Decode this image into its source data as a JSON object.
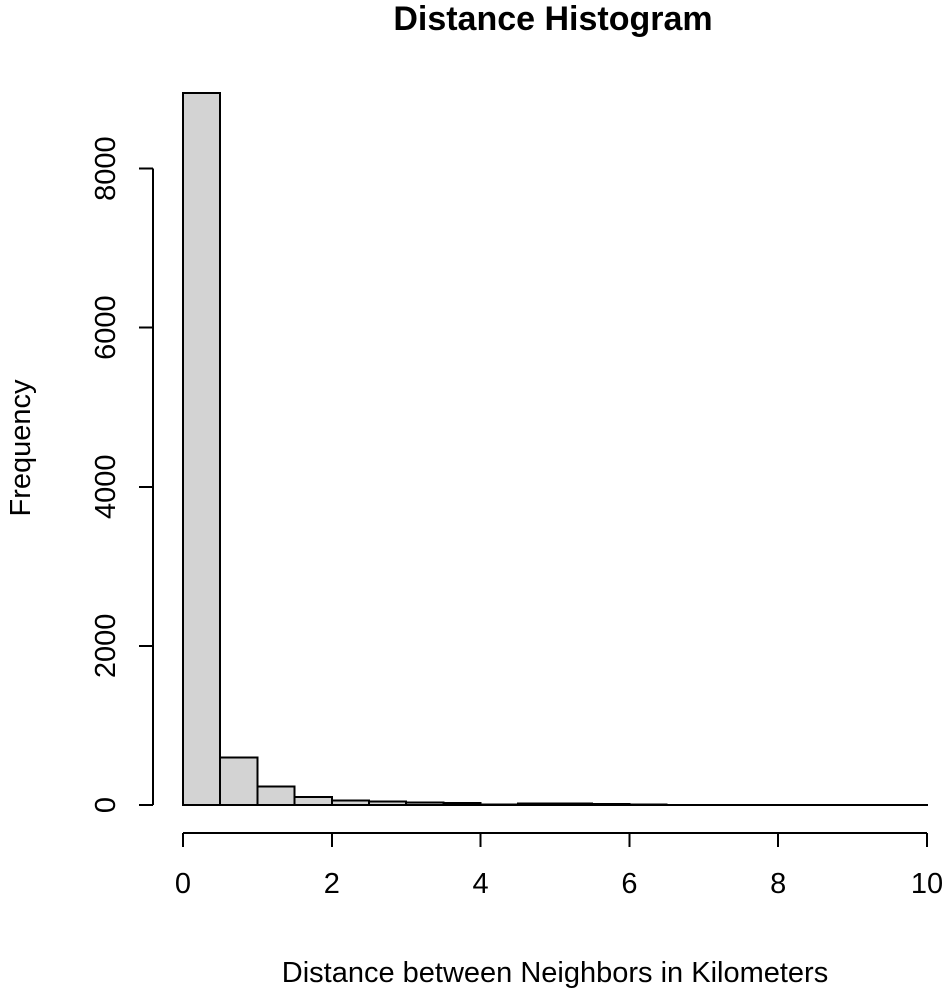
{
  "chart_data": {
    "type": "bar",
    "title": "Distance Histogram",
    "xlabel": "Distance between Neighbors in Kilometers",
    "ylabel": "Frequency",
    "bin_edges": [
      0,
      0.5,
      1,
      1.5,
      2,
      2.5,
      3,
      3.5,
      4,
      4.5,
      5,
      5.5,
      6,
      6.5,
      7,
      7.5,
      8,
      8.5,
      9,
      9.5,
      10
    ],
    "values": [
      8950,
      600,
      230,
      100,
      55,
      45,
      30,
      25,
      5,
      20,
      20,
      15,
      5,
      3,
      2,
      2,
      2,
      1,
      1,
      1
    ],
    "xlim": [
      0,
      10
    ],
    "ylim": [
      0,
      8950
    ],
    "x_ticks": [
      "0",
      "2",
      "4",
      "6",
      "8",
      "10"
    ],
    "x_tick_values": [
      0,
      2,
      4,
      6,
      8,
      10
    ],
    "y_ticks": [
      "0",
      "2000",
      "4000",
      "6000",
      "8000"
    ],
    "y_tick_values": [
      0,
      2000,
      4000,
      6000,
      8000
    ],
    "grid": false,
    "bar_color": "#d3d3d3",
    "edge_color": "#000000"
  }
}
